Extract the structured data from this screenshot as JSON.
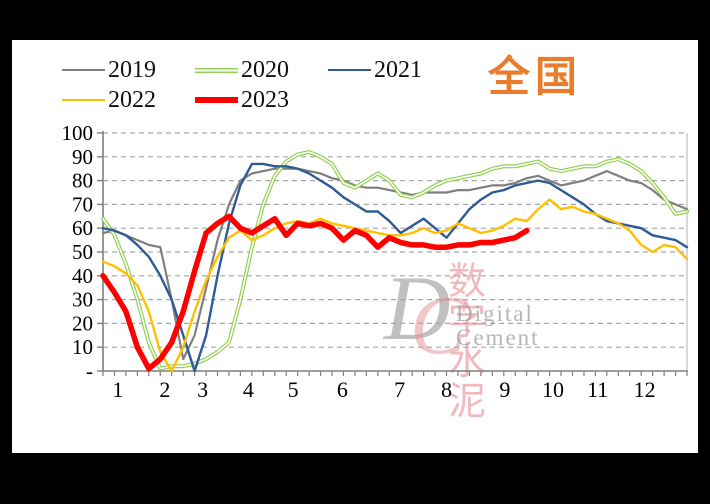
{
  "title": "全国",
  "watermark": {
    "monogram_d": "D",
    "monogram_c": "C",
    "cn": "数字水泥",
    "en": "Digital Cement"
  },
  "chart_data": {
    "type": "line",
    "title": "全国",
    "x_axis": {
      "unit": "week-of-year",
      "weeks": 52,
      "month_labels": [
        {
          "label": "1",
          "week": 2.3
        },
        {
          "label": "2",
          "week": 6.4
        },
        {
          "label": "3",
          "week": 9.7
        },
        {
          "label": "4",
          "week": 13.7
        },
        {
          "label": "5",
          "week": 17.6
        },
        {
          "label": "6",
          "week": 21.9
        },
        {
          "label": "7",
          "week": 26.9
        },
        {
          "label": "8",
          "week": 31.0
        },
        {
          "label": "9",
          "week": 36.1
        },
        {
          "label": "10",
          "week": 40.3
        },
        {
          "label": "11",
          "week": 44.2
        },
        {
          "label": "12",
          "week": 48.3
        }
      ]
    },
    "y_axis": {
      "min": 0,
      "max": 100,
      "tick_step": 10,
      "tick_labels": [
        "100",
        "90",
        "80",
        "70",
        "60",
        "50",
        "40",
        "30",
        "20",
        "10",
        "-"
      ]
    },
    "grid": {
      "horizontal_dashed": true,
      "color": "#a6a6a6"
    },
    "legend_position": "top-left",
    "series": [
      {
        "name": "2019",
        "color": "#7F7F7F",
        "style": "solid",
        "stroke_width": 2.2,
        "values": [
          58,
          59,
          57,
          55,
          53,
          52,
          30,
          5,
          15,
          35,
          55,
          70,
          80,
          83,
          84,
          85,
          85,
          85,
          84,
          83,
          81,
          80,
          78,
          77,
          77,
          76,
          75,
          74,
          75,
          75,
          75,
          76,
          76,
          77,
          78,
          78,
          79,
          81,
          82,
          80,
          78,
          79,
          80,
          82,
          84,
          82,
          80,
          79,
          76,
          72,
          70,
          68
        ]
      },
      {
        "name": "2020",
        "color": "#92D050",
        "style": "double",
        "stroke_width": 4,
        "values": [
          64,
          57,
          45,
          30,
          12,
          1,
          2,
          2,
          3,
          5,
          8,
          12,
          30,
          52,
          70,
          82,
          88,
          91,
          92,
          90,
          87,
          79,
          77,
          80,
          83,
          80,
          74,
          73,
          75,
          78,
          80,
          81,
          82,
          83,
          85,
          86,
          86,
          87,
          88,
          85,
          84,
          85,
          86,
          86,
          88,
          89,
          87,
          84,
          79,
          73,
          66,
          67
        ]
      },
      {
        "name": "2021",
        "color": "#2F5B94",
        "style": "solid",
        "stroke_width": 2.4,
        "values": [
          60,
          59,
          57,
          53,
          48,
          40,
          30,
          15,
          0,
          15,
          40,
          62,
          78,
          87,
          87,
          86,
          86,
          85,
          83,
          80,
          77,
          73,
          70,
          67,
          67,
          63,
          58,
          61,
          64,
          60,
          56,
          62,
          68,
          72,
          75,
          76,
          78,
          79,
          80,
          79,
          76,
          73,
          70,
          66,
          63,
          62,
          61,
          60,
          57,
          56,
          55,
          52
        ]
      },
      {
        "name": "2022",
        "color": "#FFC000",
        "style": "solid",
        "stroke_width": 2.4,
        "values": [
          46,
          44,
          41,
          36,
          25,
          8,
          0,
          10,
          25,
          38,
          48,
          56,
          59,
          55,
          57,
          60,
          62,
          63,
          62,
          64,
          62,
          61,
          60,
          59,
          58,
          57,
          57,
          58,
          60,
          58,
          59,
          62,
          60,
          58,
          59,
          61,
          64,
          63,
          68,
          72,
          68,
          69,
          67,
          66,
          64,
          62,
          59,
          53,
          50,
          53,
          52,
          47
        ]
      },
      {
        "name": "2023",
        "color": "#FF0000",
        "style": "solid",
        "stroke_width": 5.5,
        "values": [
          40,
          33,
          25,
          10,
          1,
          5,
          12,
          25,
          42,
          58,
          62,
          65,
          60,
          58,
          61,
          64,
          57,
          62,
          61,
          62,
          60,
          55,
          59,
          57,
          52,
          56,
          54,
          53,
          53,
          52,
          52,
          53,
          53,
          54,
          54,
          55,
          56,
          59
        ]
      }
    ]
  },
  "colors": {
    "title": "#E87D2E",
    "axis": "#7F7F7F",
    "plot_border_right": "#BFBFBF",
    "background_frame": "#000000",
    "panel": "#FFFFFF"
  }
}
